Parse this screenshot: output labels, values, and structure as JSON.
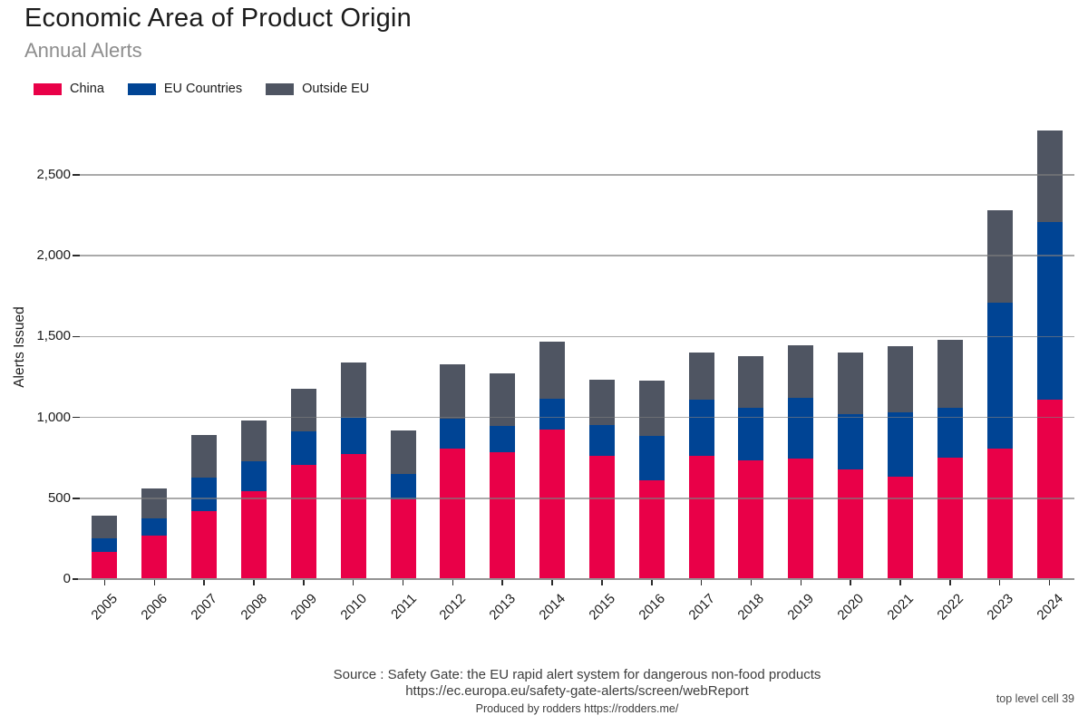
{
  "chart_data": {
    "type": "bar",
    "stacked": true,
    "title": "Economic Area of Product Origin",
    "subtitle": "Annual Alerts",
    "ylabel": "Alerts Issued",
    "xlabel": "",
    "categories": [
      "2005",
      "2006",
      "2007",
      "2008",
      "2009",
      "2010",
      "2011",
      "2012",
      "2013",
      "2014",
      "2015",
      "2016",
      "2017",
      "2018",
      "2019",
      "2020",
      "2021",
      "2022",
      "2023",
      "2024"
    ],
    "series": [
      {
        "name": "China",
        "color": "#e90048",
        "values": [
          170,
          270,
          420,
          545,
          705,
          775,
          495,
          810,
          785,
          925,
          765,
          610,
          760,
          735,
          745,
          680,
          635,
          750,
          810,
          1110
        ]
      },
      {
        "name": "EU Countries",
        "color": "#004494",
        "values": [
          85,
          105,
          210,
          185,
          210,
          225,
          155,
          180,
          160,
          190,
          190,
          275,
          350,
          325,
          375,
          340,
          395,
          310,
          900,
          1100
        ]
      },
      {
        "name": "Outside EU",
        "color": "#4f5562",
        "values": [
          135,
          185,
          260,
          250,
          260,
          340,
          270,
          340,
          330,
          355,
          280,
          340,
          290,
          320,
          325,
          380,
          410,
          420,
          570,
          565
        ]
      }
    ],
    "ylim": [
      0,
      2800
    ],
    "ytick_values": [
      0,
      500,
      1000,
      1500,
      2000,
      2500
    ],
    "ytick_labels": [
      "0",
      "500",
      "1,000",
      "1,500",
      "2,000",
      "2,500"
    ],
    "grid": true,
    "legend_position": "top-left"
  },
  "footer": {
    "source_line": "Source : Safety Gate: the EU rapid alert system for dangerous non-food products",
    "url_line": "https://ec.europa.eu/safety-gate-alerts/screen/webReport",
    "produced_by": "Produced by rodders https://rodders.me/",
    "corner_note": "top level cell 39"
  }
}
